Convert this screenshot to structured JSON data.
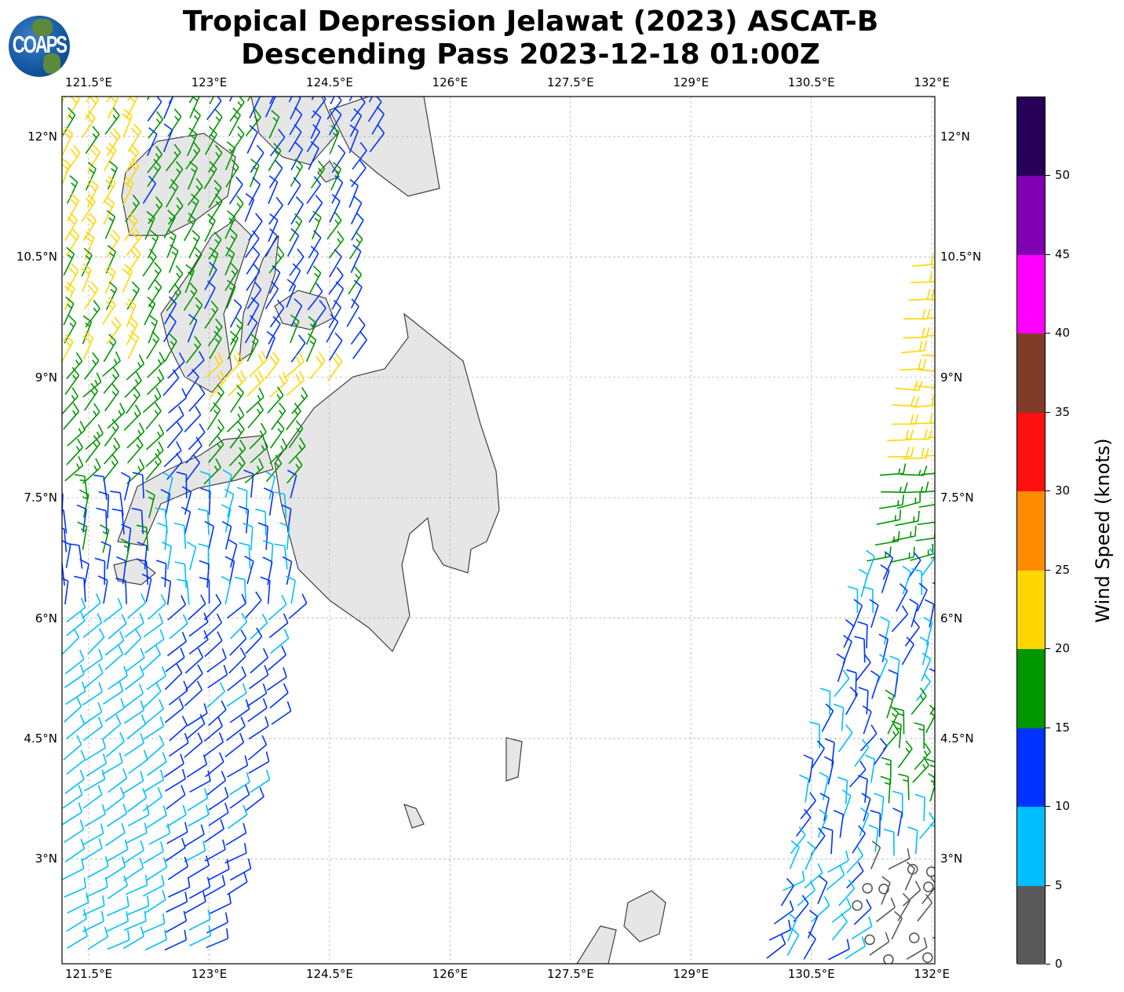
{
  "title": {
    "line1": "Tropical Depression Jelawat (2023) ASCAT-B",
    "line2": "Descending Pass 2023-12-18 01:00Z"
  },
  "logo": {
    "text": "COAPS"
  },
  "map": {
    "lon_ticks": [
      "121.5°E",
      "123°E",
      "124.5°E",
      "126°E",
      "127.5°E",
      "129°E",
      "130.5°E",
      "132°E"
    ],
    "lat_ticks": [
      "12°N",
      "10.5°N",
      "9°N",
      "7.5°N",
      "6°N",
      "4.5°N",
      "3°N"
    ],
    "lon_range": [
      121.15,
      132.05
    ],
    "lat_range": [
      1.65,
      12.5
    ],
    "gridlines": true,
    "land_color": "#e6e6e6",
    "coast_color": "#404040"
  },
  "colorbar": {
    "label": "Wind Speed (knots)",
    "tick_labels": [
      "0",
      "5",
      "10",
      "15",
      "20",
      "25",
      "30",
      "35",
      "40",
      "45",
      "50"
    ],
    "bins": [
      {
        "min": 0,
        "max": 5,
        "color": "#595959"
      },
      {
        "min": 5,
        "max": 10,
        "color": "#00bfff"
      },
      {
        "min": 10,
        "max": 15,
        "color": "#0033ff"
      },
      {
        "min": 15,
        "max": 20,
        "color": "#009600"
      },
      {
        "min": 20,
        "max": 25,
        "color": "#ffd700"
      },
      {
        "min": 25,
        "max": 30,
        "color": "#ff8c00"
      },
      {
        "min": 30,
        "max": 35,
        "color": "#ff1010"
      },
      {
        "min": 35,
        "max": 40,
        "color": "#803c28"
      },
      {
        "min": 40,
        "max": 45,
        "color": "#ff00ff"
      },
      {
        "min": 45,
        "max": 50,
        "color": "#8000b4"
      },
      {
        "min": 50,
        "max": 55,
        "color": "#28005a"
      }
    ]
  }
}
